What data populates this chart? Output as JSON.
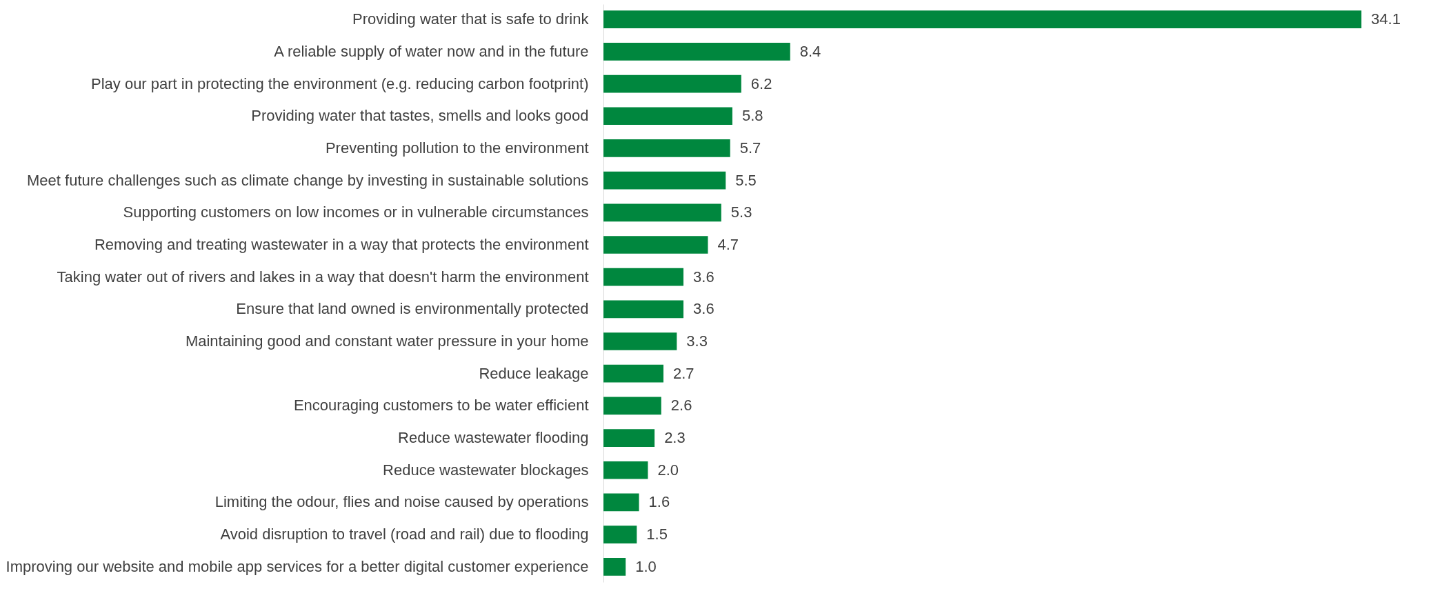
{
  "chart_data": {
    "type": "bar",
    "orientation": "horizontal",
    "color": "#00873e",
    "value_labels": [
      "34.1",
      "8.4",
      "6.2",
      "5.8",
      "5.7",
      "5.5",
      "5.3",
      "4.7",
      "3.6",
      "3.6",
      "3.3",
      "2.7",
      "2.6",
      "2.3",
      "2.0",
      "1.6",
      "1.5",
      "1.0"
    ],
    "categories": [
      "Providing water that is safe to drink",
      "A reliable supply of water now and in the future ",
      "Play our part in protecting the environment (e.g. reducing carbon footprint)",
      "Providing water that tastes, smells and looks good ",
      "Preventing pollution to the environment ",
      "Meet future challenges such as climate change by investing in sustainable solutions",
      "Supporting customers on low incomes or in vulnerable circumstances",
      "Removing and treating wastewater in a way that protects the environment",
      "Taking water out of rivers and lakes in a way that doesn't harm the environment",
      "Ensure that land owned is environmentally protected",
      "Maintaining good and constant water pressure in your home",
      "Reduce leakage",
      "Encouraging customers to be water efficient ",
      "Reduce wastewater flooding",
      "Reduce wastewater blockages",
      "Limiting the odour, flies and noise caused by operations",
      "Avoid disruption to travel  (road and rail)  due to flooding ",
      "Improving our website and mobile app services for a better digital customer experience"
    ],
    "values": [
      34.1,
      8.4,
      6.2,
      5.8,
      5.7,
      5.5,
      5.3,
      4.7,
      3.6,
      3.6,
      3.3,
      2.7,
      2.6,
      2.3,
      2.0,
      1.6,
      1.5,
      1.0
    ]
  }
}
